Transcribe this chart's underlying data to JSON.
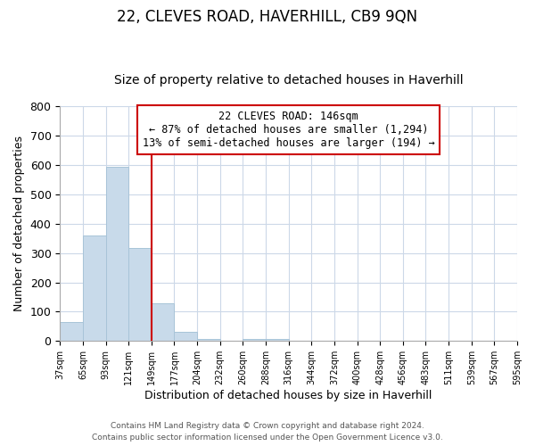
{
  "title": "22, CLEVES ROAD, HAVERHILL, CB9 9QN",
  "subtitle": "Size of property relative to detached houses in Haverhill",
  "xlabel": "Distribution of detached houses by size in Haverhill",
  "ylabel": "Number of detached properties",
  "bin_labels": [
    "37sqm",
    "65sqm",
    "93sqm",
    "121sqm",
    "149sqm",
    "177sqm",
    "204sqm",
    "232sqm",
    "260sqm",
    "288sqm",
    "316sqm",
    "344sqm",
    "372sqm",
    "400sqm",
    "428sqm",
    "456sqm",
    "483sqm",
    "511sqm",
    "539sqm",
    "567sqm",
    "595sqm"
  ],
  "bar_values": [
    65,
    358,
    592,
    316,
    130,
    30,
    8,
    0,
    8,
    8,
    0,
    0,
    0,
    0,
    0,
    0,
    0,
    0,
    0,
    0
  ],
  "bar_color": "#c8daea",
  "bar_edge_color": "#a8c4d8",
  "vline_x": 4,
  "vline_color": "#cc0000",
  "annotation_line1": "22 CLEVES ROAD: 146sqm",
  "annotation_line2": "← 87% of detached houses are smaller (1,294)",
  "annotation_line3": "13% of semi-detached houses are larger (194) →",
  "annotation_box_color": "#cc0000",
  "ylim": [
    0,
    800
  ],
  "yticks": [
    0,
    100,
    200,
    300,
    400,
    500,
    600,
    700,
    800
  ],
  "footer1": "Contains HM Land Registry data © Crown copyright and database right 2024.",
  "footer2": "Contains public sector information licensed under the Open Government Licence v3.0.",
  "bg_color": "#ffffff",
  "grid_color": "#ccd8e8",
  "title_fontsize": 12,
  "subtitle_fontsize": 10
}
